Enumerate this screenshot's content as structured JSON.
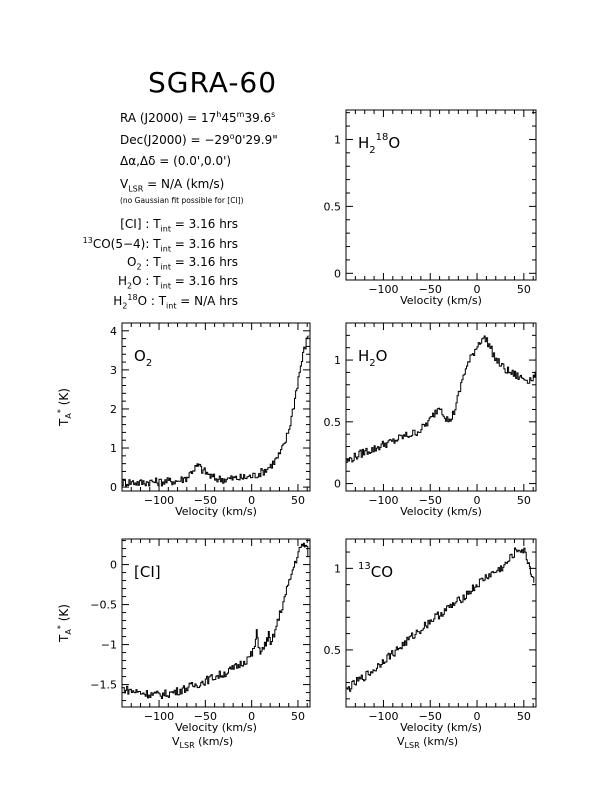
{
  "header": {
    "title": "SGRA-60",
    "ra": {
      "prefix": "RA (J2000)  =  17",
      "h": "h",
      "mid": "45",
      "m": "m",
      "sec": "39.6",
      "s": "s"
    },
    "dec": {
      "prefix": "Dec(J2000)  =  −29",
      "deg": "o",
      "rest": "0'29.9\""
    },
    "offset": "Δα,Δδ  =  (0.0',0.0')",
    "vlsr": {
      "v": "V",
      "sub": "LSR",
      "rest": "  = N/A  (km/s)"
    },
    "note": "(no Gaussian fit possible for [CI])",
    "integrations": [
      {
        "pre_sup": "",
        "name": "[CI] : T",
        "sub": "int",
        "value": " =  3.16 hrs"
      },
      {
        "pre_sup": "13",
        "name": "CO(5−4): T",
        "sub": "int",
        "value": " =  3.16 hrs"
      },
      {
        "pre_sup": "",
        "name": "O",
        "name_sub": "2",
        "name2": " : T",
        "sub": "int",
        "value": " =  3.16 hrs"
      },
      {
        "pre_sup": "",
        "name": "H",
        "name_sub": "2",
        "name2": "O : T",
        "sub": "int",
        "value": " =  3.16 hrs"
      },
      {
        "pre_sup": "",
        "name": "H",
        "name_sub": "2",
        "name_sup": "18",
        "name2": "O : T",
        "sub": "int",
        "value": " =  N/A  hrs"
      }
    ]
  },
  "chart_data": [
    {
      "type": "line",
      "id": "h218o",
      "label": {
        "base": "H",
        "sub": "2",
        "sup": "18",
        "tail": "O"
      },
      "xlabel": "Velocity (km/s)",
      "xlabel2": "",
      "ylabel": "",
      "xlim": [
        -140,
        63
      ],
      "ylim": [
        -0.05,
        1.22
      ],
      "xticks": [
        -100,
        -50,
        0,
        50
      ],
      "xtick_labels": [
        "−100",
        "−50",
        "0",
        "50"
      ],
      "yticks": [
        0,
        0.5,
        1
      ],
      "ytick_labels": [
        "0",
        "0.5",
        "1"
      ],
      "series": [
        {
          "x": [],
          "y": []
        }
      ]
    },
    {
      "type": "line",
      "id": "o2",
      "label": {
        "base": "O",
        "sub": "2",
        "sup": "",
        "tail": ""
      },
      "xlabel": "Velocity (km/s)",
      "xlabel2": "",
      "ylabel": "T",
      "xlim": [
        -140,
        63
      ],
      "ylim": [
        -0.1,
        4.2
      ],
      "xticks": [
        -100,
        -50,
        0,
        50
      ],
      "xtick_labels": [
        "−100",
        "−50",
        "0",
        "50"
      ],
      "yticks": [
        0,
        1,
        2,
        3,
        4
      ],
      "ytick_labels": [
        "0",
        "1",
        "2",
        "3",
        "4"
      ],
      "series": [
        {
          "x": [
            -140,
            -130,
            -120,
            -110,
            -100,
            -90,
            -80,
            -70,
            -65,
            -60,
            -57,
            -54,
            -50,
            -45,
            -40,
            -30,
            -20,
            -10,
            0,
            5,
            10,
            15,
            20,
            25,
            30,
            35,
            40,
            45,
            50,
            55,
            60,
            62
          ],
          "y": [
            0.12,
            0.13,
            0.11,
            0.14,
            0.13,
            0.15,
            0.16,
            0.25,
            0.42,
            0.52,
            0.55,
            0.44,
            0.38,
            0.28,
            0.22,
            0.2,
            0.22,
            0.24,
            0.28,
            0.32,
            0.38,
            0.45,
            0.55,
            0.68,
            0.85,
            1.1,
            1.5,
            2.1,
            2.8,
            3.4,
            3.85,
            4.0
          ]
        }
      ]
    },
    {
      "type": "line",
      "id": "h2o",
      "label": {
        "base": "H",
        "sub": "2",
        "sup": "",
        "tail": "O"
      },
      "xlabel": "Velocity (km/s)",
      "xlabel2": "",
      "ylabel": "",
      "xlim": [
        -140,
        63
      ],
      "ylim": [
        -0.06,
        1.3
      ],
      "xticks": [
        -100,
        -50,
        0,
        50
      ],
      "xtick_labels": [
        "−100",
        "−50",
        "0",
        "50"
      ],
      "yticks": [
        0,
        0.5,
        1
      ],
      "ytick_labels": [
        "0",
        "0.5",
        "1"
      ],
      "series": [
        {
          "x": [
            -140,
            -130,
            -120,
            -110,
            -100,
            -90,
            -80,
            -70,
            -60,
            -50,
            -45,
            -40,
            -35,
            -30,
            -25,
            -20,
            -15,
            -10,
            -5,
            0,
            5,
            10,
            15,
            20,
            25,
            30,
            35,
            40,
            45,
            50,
            55,
            60,
            63
          ],
          "y": [
            0.18,
            0.22,
            0.26,
            0.28,
            0.32,
            0.34,
            0.38,
            0.4,
            0.44,
            0.52,
            0.58,
            0.63,
            0.55,
            0.5,
            0.58,
            0.72,
            0.88,
            0.97,
            1.05,
            1.12,
            1.18,
            1.16,
            1.08,
            1.0,
            0.96,
            0.92,
            0.9,
            0.88,
            0.86,
            0.85,
            0.84,
            0.86,
            0.88
          ]
        }
      ]
    },
    {
      "type": "line",
      "id": "ci",
      "label": {
        "base": "[CI]",
        "sub": "",
        "sup": "",
        "tail": ""
      },
      "xlabel": "Velocity (km/s)",
      "xlabel2": "LSR",
      "ylabel": "T",
      "xlim": [
        -140,
        63
      ],
      "ylim": [
        -1.78,
        0.32
      ],
      "xticks": [
        -100,
        -50,
        0,
        50
      ],
      "xtick_labels": [
        "−100",
        "−50",
        "0",
        "50"
      ],
      "yticks": [
        -1.5,
        -1,
        -0.5,
        0
      ],
      "ytick_labels": [
        "−1.5",
        "−1",
        "−0.5",
        "0"
      ],
      "series": [
        {
          "x": [
            -140,
            -130,
            -120,
            -110,
            -100,
            -90,
            -80,
            -70,
            -60,
            -50,
            -40,
            -30,
            -20,
            -10,
            -5,
            0,
            3,
            5,
            8,
            10,
            15,
            18,
            20,
            25,
            30,
            35,
            40,
            45,
            50,
            55,
            58,
            62
          ],
          "y": [
            -1.55,
            -1.58,
            -1.6,
            -1.62,
            -1.63,
            -1.61,
            -1.58,
            -1.54,
            -1.5,
            -1.45,
            -1.4,
            -1.36,
            -1.3,
            -1.22,
            -1.18,
            -1.12,
            -1.02,
            -0.86,
            -1.05,
            -1.1,
            -0.98,
            -0.88,
            -1.02,
            -0.82,
            -0.62,
            -0.42,
            -0.22,
            -0.02,
            0.15,
            0.26,
            0.22,
            0.1
          ]
        }
      ]
    },
    {
      "type": "line",
      "id": "13co",
      "label": {
        "base": "",
        "sub": "",
        "sup": "13",
        "tail": "CO"
      },
      "xlabel": "Velocity (km/s)",
      "xlabel2": "LSR",
      "ylabel": "",
      "xlim": [
        -140,
        63
      ],
      "ylim": [
        0.15,
        1.18
      ],
      "xticks": [
        -100,
        -50,
        0,
        50
      ],
      "xtick_labels": [
        "−100",
        "−50",
        "0",
        "50"
      ],
      "yticks": [
        0.5,
        1
      ],
      "ytick_labels": [
        "0.5",
        "1"
      ],
      "series": [
        {
          "x": [
            -140,
            -130,
            -120,
            -110,
            -100,
            -90,
            -80,
            -70,
            -60,
            -50,
            -40,
            -30,
            -20,
            -10,
            0,
            10,
            20,
            30,
            35,
            40,
            45,
            50,
            55,
            58,
            62
          ],
          "y": [
            0.25,
            0.3,
            0.34,
            0.38,
            0.44,
            0.48,
            0.53,
            0.58,
            0.63,
            0.68,
            0.72,
            0.76,
            0.8,
            0.85,
            0.9,
            0.95,
            0.98,
            1.02,
            1.06,
            1.1,
            1.12,
            1.1,
            1.03,
            0.96,
            0.9
          ]
        }
      ]
    }
  ]
}
